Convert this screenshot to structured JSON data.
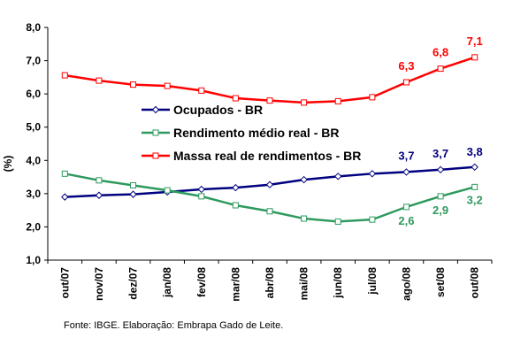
{
  "chart_data": {
    "type": "line",
    "ylabel": "(%)",
    "ylim": [
      1.0,
      8.0
    ],
    "yticks": [
      "1,0",
      "2,0",
      "3,0",
      "4,0",
      "5,0",
      "6,0",
      "7,0",
      "8,0"
    ],
    "categories": [
      "out/07",
      "nov/07",
      "dez/07",
      "jan/08",
      "fev/08",
      "mar/08",
      "abr/08",
      "mai/08",
      "jun/08",
      "jul/08",
      "ago/08",
      "set/08",
      "out/08"
    ],
    "grid": false,
    "legend_position": "center",
    "series": [
      {
        "name": "Ocupados - BR",
        "color": "#000080",
        "marker": "diamond",
        "values": [
          2.9,
          2.95,
          2.98,
          3.05,
          3.13,
          3.18,
          3.27,
          3.42,
          3.52,
          3.6,
          3.65,
          3.72,
          3.8
        ],
        "labels": [
          null,
          null,
          null,
          null,
          null,
          null,
          null,
          null,
          null,
          null,
          "3,7",
          "3,7",
          "3,8"
        ]
      },
      {
        "name": "Rendimento médio real - BR",
        "color": "#2e9a5e",
        "marker": "square",
        "values": [
          3.6,
          3.4,
          3.25,
          3.1,
          2.92,
          2.65,
          2.47,
          2.25,
          2.16,
          2.22,
          2.6,
          2.92,
          3.2
        ],
        "labels": [
          null,
          null,
          null,
          null,
          null,
          null,
          null,
          null,
          null,
          null,
          "2,6",
          "2,9",
          "3,2"
        ]
      },
      {
        "name": "Massa real de rendimentos - BR",
        "color": "#ff0000",
        "marker": "square",
        "values": [
          6.56,
          6.4,
          6.28,
          6.24,
          6.1,
          5.87,
          5.8,
          5.74,
          5.78,
          5.9,
          6.35,
          6.76,
          7.1
        ],
        "labels": [
          null,
          null,
          null,
          null,
          null,
          null,
          null,
          null,
          null,
          null,
          "6,3",
          "6,8",
          "7,1"
        ]
      }
    ]
  },
  "source_text": "Fonte: IBGE. Elaboração: Embrapa Gado de Leite."
}
